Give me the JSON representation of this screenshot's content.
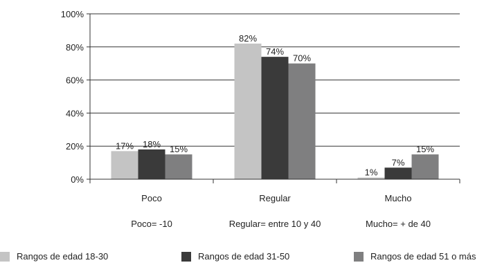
{
  "chart_data": {
    "type": "bar",
    "categories": [
      "Poco",
      "Regular",
      "Mucho"
    ],
    "category_notes": [
      "Poco= -10",
      "Regular= entre 10 y 40",
      "Mucho= + de 40"
    ],
    "series": [
      {
        "name": "Rangos de edad 18-30",
        "values": [
          17,
          82,
          1
        ],
        "labels": [
          "17%",
          "82%",
          "1%"
        ],
        "color": "#c4c4c4"
      },
      {
        "name": "Rangos de edad 31-50",
        "values": [
          18,
          74,
          7
        ],
        "labels": [
          "18%",
          "74%",
          "7%"
        ],
        "color": "#3a3a3a"
      },
      {
        "name": "Rangos de edad 51 o más",
        "values": [
          15,
          70,
          15
        ],
        "labels": [
          "15%",
          "70%",
          "15%"
        ],
        "color": "#7f7f80"
      }
    ],
    "yticks": [
      "0%",
      "20%",
      "40%",
      "60%",
      "80%",
      "100%"
    ],
    "ylim": [
      0,
      100
    ],
    "grid": true,
    "legend": "bottom"
  }
}
